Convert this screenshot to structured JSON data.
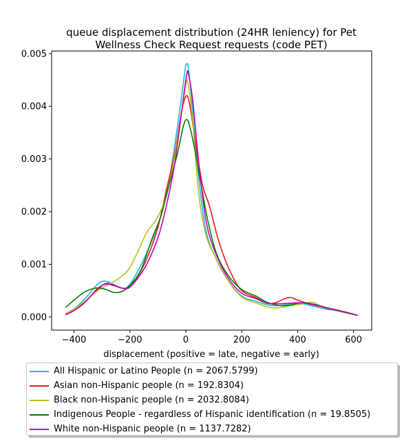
{
  "chart_data": {
    "type": "line",
    "title": "queue displacement distribution (24HR leniency) for Pet\nWellness Check Request  requests (code PET)",
    "xlabel": "displacement (positive = late, negative = early)",
    "ylabel": "",
    "xlim": [
      -480,
      665
    ],
    "ylim": [
      -0.00025,
      0.00505
    ],
    "x_ticks": [
      -400,
      -200,
      0,
      200,
      400,
      600
    ],
    "x_tick_labels": [
      "−400",
      "−200",
      "0",
      "200",
      "400",
      "600"
    ],
    "y_ticks": [
      0.0,
      0.001,
      0.002,
      0.003,
      0.004,
      0.005
    ],
    "y_tick_labels": [
      "0.000",
      "0.001",
      "0.002",
      "0.003",
      "0.004",
      "0.005"
    ],
    "grid": false,
    "legend_position": "below",
    "series": [
      {
        "name": "All Hispanic or Latino People (n = 2067.5799)",
        "color": "#17becf",
        "points": [
          [
            -430,
            5e-05
          ],
          [
            -400,
            0.00015
          ],
          [
            -360,
            0.00035
          ],
          [
            -320,
            0.0006
          ],
          [
            -295,
            0.00068
          ],
          [
            -270,
            0.00065
          ],
          [
            -240,
            0.00057
          ],
          [
            -215,
            0.00055
          ],
          [
            -190,
            0.0007
          ],
          [
            -150,
            0.0011
          ],
          [
            -110,
            0.0016
          ],
          [
            -80,
            0.0021
          ],
          [
            -50,
            0.0029
          ],
          [
            -25,
            0.0038
          ],
          [
            -5,
            0.0046
          ],
          [
            2,
            0.0048
          ],
          [
            10,
            0.0047
          ],
          [
            25,
            0.0039
          ],
          [
            45,
            0.0027
          ],
          [
            70,
            0.0017
          ],
          [
            100,
            0.0012
          ],
          [
            150,
            0.0007
          ],
          [
            200,
            0.0004
          ],
          [
            250,
            0.0003
          ],
          [
            300,
            0.00022
          ],
          [
            340,
            0.00022
          ],
          [
            380,
            0.00025
          ],
          [
            420,
            0.00025
          ],
          [
            460,
            0.0002
          ],
          [
            500,
            0.00015
          ],
          [
            560,
            0.0001
          ],
          [
            615,
            3e-05
          ]
        ]
      },
      {
        "name": "Asian non-Hispanic people (n = 192.8304)",
        "color": "#e41a1c",
        "points": [
          [
            -430,
            6e-05
          ],
          [
            -400,
            0.00015
          ],
          [
            -360,
            0.0003
          ],
          [
            -320,
            0.0005
          ],
          [
            -290,
            0.00063
          ],
          [
            -265,
            0.00062
          ],
          [
            -230,
            0.00055
          ],
          [
            -205,
            0.00055
          ],
          [
            -180,
            0.0007
          ],
          [
            -140,
            0.0011
          ],
          [
            -100,
            0.0017
          ],
          [
            -70,
            0.0024
          ],
          [
            -40,
            0.0031
          ],
          [
            -15,
            0.0039
          ],
          [
            2,
            0.0042
          ],
          [
            15,
            0.004
          ],
          [
            35,
            0.0033
          ],
          [
            60,
            0.0025
          ],
          [
            85,
            0.0021
          ],
          [
            120,
            0.0014
          ],
          [
            160,
            0.00085
          ],
          [
            200,
            0.0005
          ],
          [
            250,
            0.00037
          ],
          [
            290,
            0.00026
          ],
          [
            320,
            0.00027
          ],
          [
            350,
            0.00034
          ],
          [
            375,
            0.00037
          ],
          [
            400,
            0.00032
          ],
          [
            440,
            0.00025
          ],
          [
            480,
            0.0002
          ],
          [
            540,
            0.00012
          ],
          [
            615,
            3e-05
          ]
        ]
      },
      {
        "name": "Black non-Hispanic people (n = 2032.8084)",
        "color": "#bcbd22",
        "points": [
          [
            -430,
            5e-05
          ],
          [
            -400,
            0.00015
          ],
          [
            -360,
            0.0003
          ],
          [
            -320,
            0.00048
          ],
          [
            -290,
            0.00058
          ],
          [
            -265,
            0.00065
          ],
          [
            -235,
            0.00075
          ],
          [
            -205,
            0.0009
          ],
          [
            -175,
            0.0012
          ],
          [
            -140,
            0.0016
          ],
          [
            -100,
            0.0019
          ],
          [
            -70,
            0.0023
          ],
          [
            -45,
            0.0029
          ],
          [
            -20,
            0.0037
          ],
          [
            0,
            0.0044
          ],
          [
            8,
            0.00443
          ],
          [
            25,
            0.0037
          ],
          [
            45,
            0.0024
          ],
          [
            70,
            0.0016
          ],
          [
            100,
            0.0012
          ],
          [
            150,
            0.0007
          ],
          [
            200,
            0.00038
          ],
          [
            250,
            0.00027
          ],
          [
            300,
            0.00018
          ],
          [
            340,
            0.00018
          ],
          [
            380,
            0.00022
          ],
          [
            420,
            0.00025
          ],
          [
            450,
            0.00028
          ],
          [
            480,
            0.00022
          ],
          [
            540,
            0.00012
          ],
          [
            615,
            3e-05
          ]
        ]
      },
      {
        "name": "Indigenous People - regardless of Hispanic identification (n = 19.8505)",
        "color": "#008000",
        "points": [
          [
            -430,
            0.00018
          ],
          [
            -400,
            0.00032
          ],
          [
            -360,
            0.00048
          ],
          [
            -320,
            0.00055
          ],
          [
            -290,
            0.00053
          ],
          [
            -260,
            0.00047
          ],
          [
            -230,
            0.00048
          ],
          [
            -200,
            0.0006
          ],
          [
            -160,
            0.0009
          ],
          [
            -120,
            0.0015
          ],
          [
            -90,
            0.0019
          ],
          [
            -60,
            0.0025
          ],
          [
            -30,
            0.0031
          ],
          [
            -10,
            0.0036
          ],
          [
            3,
            0.00375
          ],
          [
            15,
            0.0036
          ],
          [
            35,
            0.0031
          ],
          [
            55,
            0.0025
          ],
          [
            80,
            0.0018
          ],
          [
            110,
            0.0012
          ],
          [
            150,
            0.0008
          ],
          [
            200,
            0.00052
          ],
          [
            250,
            0.0004
          ],
          [
            290,
            0.00028
          ],
          [
            330,
            0.00022
          ],
          [
            370,
            0.00022
          ],
          [
            410,
            0.00027
          ],
          [
            450,
            0.00025
          ],
          [
            500,
            0.00018
          ],
          [
            560,
            0.0001
          ],
          [
            615,
            3e-05
          ]
        ]
      },
      {
        "name": "White non-Hispanic people (n = 1137.7282)",
        "color": "#bf00bf",
        "points": [
          [
            -430,
            4e-05
          ],
          [
            -400,
            0.00012
          ],
          [
            -360,
            0.00028
          ],
          [
            -320,
            0.00052
          ],
          [
            -290,
            0.00062
          ],
          [
            -260,
            0.0006
          ],
          [
            -230,
            0.00055
          ],
          [
            -205,
            0.00055
          ],
          [
            -180,
            0.00068
          ],
          [
            -140,
            0.001
          ],
          [
            -100,
            0.0015
          ],
          [
            -70,
            0.0021
          ],
          [
            -40,
            0.0029
          ],
          [
            -15,
            0.0039
          ],
          [
            3,
            0.0046
          ],
          [
            10,
            0.0046
          ],
          [
            25,
            0.0041
          ],
          [
            45,
            0.003
          ],
          [
            70,
            0.0019
          ],
          [
            100,
            0.0013
          ],
          [
            150,
            0.00075
          ],
          [
            200,
            0.00045
          ],
          [
            250,
            0.00035
          ],
          [
            290,
            0.00026
          ],
          [
            330,
            0.00025
          ],
          [
            370,
            0.00026
          ],
          [
            410,
            0.00027
          ],
          [
            450,
            0.00024
          ],
          [
            500,
            0.00018
          ],
          [
            560,
            0.00011
          ],
          [
            615,
            3e-05
          ]
        ]
      }
    ]
  }
}
